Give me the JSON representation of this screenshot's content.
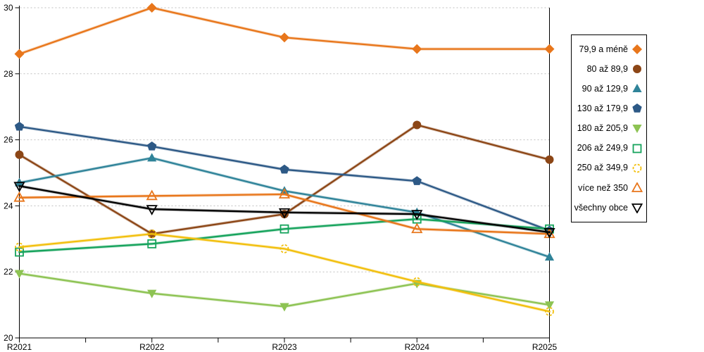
{
  "chart_data": {
    "type": "line",
    "title": "",
    "xlabel": "",
    "ylabel": "",
    "categories": [
      "R2021",
      "R2022",
      "R2023",
      "R2024",
      "R2025"
    ],
    "ylim": [
      20,
      30
    ],
    "ytick_step": 2,
    "grid": "horizontal-dotted",
    "legend_position": "right",
    "series": [
      {
        "name": "79,9 a méně",
        "color": "#E8761B",
        "marker": "diamond",
        "fill": "filled",
        "values": [
          28.6,
          30.0,
          29.1,
          28.75,
          28.75
        ]
      },
      {
        "name": "80 až 89,9",
        "color": "#8C4616",
        "marker": "circle",
        "fill": "filled",
        "values": [
          25.55,
          23.15,
          23.75,
          26.45,
          25.4
        ]
      },
      {
        "name": "90 až 129,9",
        "color": "#2F8399",
        "marker": "triangle-up",
        "fill": "filled",
        "values": [
          24.7,
          25.45,
          24.45,
          23.8,
          22.45
        ]
      },
      {
        "name": "130 až 179,9",
        "color": "#2D5986",
        "marker": "pentagon",
        "fill": "filled",
        "values": [
          26.4,
          25.8,
          25.1,
          24.75,
          23.25
        ]
      },
      {
        "name": "180 až 205,9",
        "color": "#8DC353",
        "marker": "triangle-down",
        "fill": "filled",
        "values": [
          21.95,
          21.35,
          20.95,
          21.65,
          21.0
        ]
      },
      {
        "name": "206 až 249,9",
        "color": "#16A35C",
        "marker": "square",
        "fill": "open",
        "values": [
          22.6,
          22.85,
          23.3,
          23.6,
          23.3
        ]
      },
      {
        "name": "250 až 349,9",
        "color": "#F2BF0D",
        "marker": "circle-dashed",
        "fill": "open",
        "values": [
          22.75,
          23.15,
          22.7,
          21.7,
          20.8
        ]
      },
      {
        "name": "více než 350",
        "color": "#E8761B",
        "marker": "triangle-up",
        "fill": "open",
        "values": [
          24.25,
          24.3,
          24.35,
          23.3,
          23.15
        ]
      },
      {
        "name": "všechny obce",
        "color": "#000000",
        "marker": "triangle-down",
        "fill": "open",
        "values": [
          24.6,
          23.9,
          23.8,
          23.75,
          23.2
        ]
      }
    ]
  },
  "axis": {
    "y_ticks": [
      "20",
      "22",
      "24",
      "26",
      "28",
      "30"
    ],
    "x_ticks": [
      "R2021",
      "R2022",
      "R2023",
      "R2024",
      "R2025"
    ]
  },
  "colors": {
    "background": "#FFFFFF",
    "grid": "#BFBFBF",
    "axis": "#000000",
    "legend_border": "#000000"
  }
}
